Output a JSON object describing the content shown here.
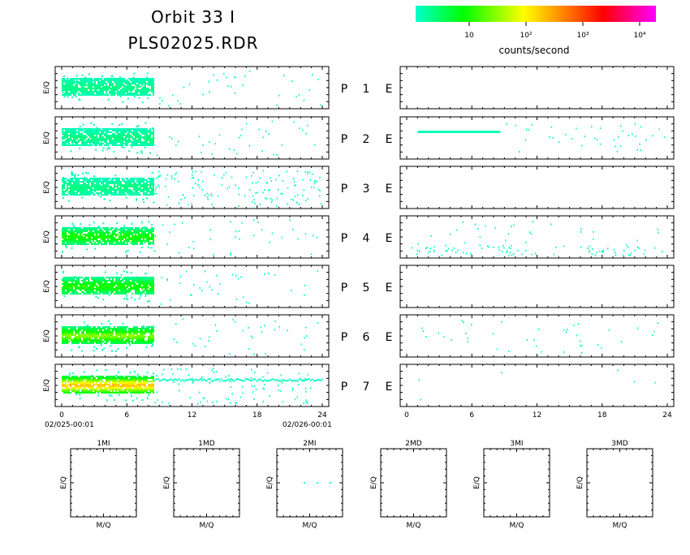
{
  "header": {
    "title_line1": "Orbit 33 I",
    "title_line2": "PLS02025.RDR"
  },
  "colorbar": {
    "label": "counts/second",
    "ticks": [
      "10",
      "10²",
      "10³",
      "10⁴"
    ],
    "colors": [
      "#00ffcc",
      "#00ff00",
      "#ffff00",
      "#ff8000",
      "#ff0000",
      "#ff00ff"
    ]
  },
  "left_axis": {
    "ylabel": "E/Q",
    "xticks": [
      "0",
      "6",
      "12",
      "18",
      "24"
    ],
    "start_label": "02/025-00:01",
    "end_label": "02/026-00:01"
  },
  "right_axis": {
    "xticks": [
      "0",
      "6",
      "12",
      "18",
      "24"
    ]
  },
  "rows": [
    {
      "p": "P",
      "n": "1",
      "e": "E"
    },
    {
      "p": "P",
      "n": "2",
      "e": "E"
    },
    {
      "p": "P",
      "n": "3",
      "e": "E"
    },
    {
      "p": "P",
      "n": "4",
      "e": "E"
    },
    {
      "p": "P",
      "n": "5",
      "e": "E"
    },
    {
      "p": "P",
      "n": "6",
      "e": "E"
    },
    {
      "p": "P",
      "n": "7",
      "e": "E"
    }
  ],
  "small_panels": {
    "titles": [
      "1MI",
      "1MD",
      "2MI",
      "2MD",
      "3MI",
      "3MD"
    ],
    "ylabel": "E/Q",
    "xlabel": "M/Q"
  },
  "chart_data": {
    "type": "heatmap",
    "x_range": [
      0,
      24
    ],
    "x_unit": "hours",
    "color_scale": "log",
    "left_panels": [
      {
        "row": 1,
        "dense_x": [
          0,
          8.5
        ],
        "intensity": "low",
        "sparse_to": 24
      },
      {
        "row": 2,
        "dense_x": [
          0,
          8.5
        ],
        "intensity": "low",
        "sparse_to": 24
      },
      {
        "row": 3,
        "dense_x": [
          0,
          8.5
        ],
        "intensity": "low",
        "sparse_to": 24
      },
      {
        "row": 4,
        "dense_x": [
          0,
          8.5
        ],
        "intensity": "medium",
        "sparse_to": 24
      },
      {
        "row": 5,
        "dense_x": [
          0,
          8.5
        ],
        "intensity": "medium",
        "sparse_to": 24
      },
      {
        "row": 6,
        "dense_x": [
          0,
          8.5
        ],
        "intensity": "medium-high",
        "sparse_to": 24
      },
      {
        "row": 7,
        "dense_x": [
          0,
          8.5
        ],
        "intensity": "high",
        "sparse_to": 24
      }
    ],
    "right_panels": [
      {
        "row": 1,
        "activity": "none"
      },
      {
        "row": 2,
        "activity": "line",
        "band_x": [
          1,
          8.5
        ]
      },
      {
        "row": 3,
        "activity": "none"
      },
      {
        "row": 4,
        "activity": "sparse"
      },
      {
        "row": 5,
        "activity": "none"
      },
      {
        "row": 6,
        "activity": "sparse"
      },
      {
        "row": 7,
        "activity": "very-sparse"
      }
    ]
  }
}
